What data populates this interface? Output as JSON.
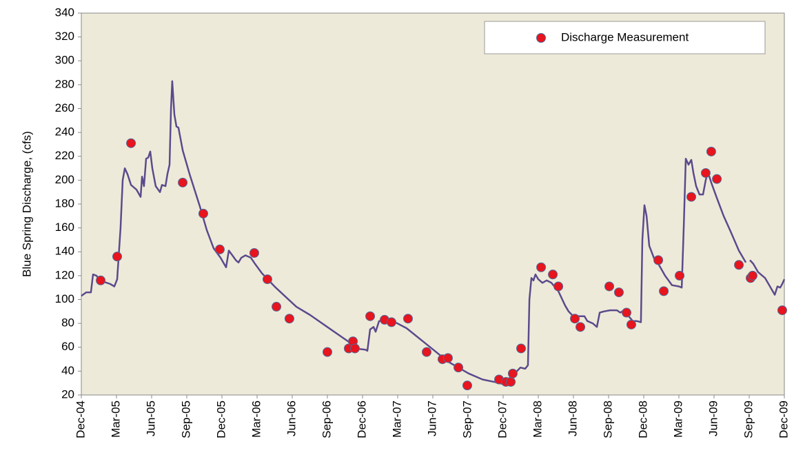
{
  "chart_data": {
    "type": "line",
    "ylabel": "Blue Spring Discharge, (cfs)",
    "ylim": [
      20,
      340
    ],
    "yticks": [
      20,
      40,
      60,
      80,
      100,
      120,
      140,
      160,
      180,
      200,
      220,
      240,
      260,
      280,
      300,
      320,
      340
    ],
    "xlim": [
      0,
      60
    ],
    "xticks": [
      {
        "value": 0,
        "label": "Dec-04"
      },
      {
        "value": 3,
        "label": "Mar-05"
      },
      {
        "value": 6,
        "label": "Jun-05"
      },
      {
        "value": 9,
        "label": "Sep-05"
      },
      {
        "value": 12,
        "label": "Dec-05"
      },
      {
        "value": 15,
        "label": "Mar-06"
      },
      {
        "value": 18,
        "label": "Jun-06"
      },
      {
        "value": 21,
        "label": "Sep-06"
      },
      {
        "value": 24,
        "label": "Dec-06"
      },
      {
        "value": 27,
        "label": "Mar-07"
      },
      {
        "value": 30,
        "label": "Jun-07"
      },
      {
        "value": 33,
        "label": "Sep-07"
      },
      {
        "value": 36,
        "label": "Dec-07"
      },
      {
        "value": 39,
        "label": "Mar-08"
      },
      {
        "value": 42,
        "label": "Jun-08"
      },
      {
        "value": 45,
        "label": "Sep-08"
      },
      {
        "value": 48,
        "label": "Dec-08"
      },
      {
        "value": 51,
        "label": "Mar-09"
      },
      {
        "value": 54,
        "label": "Jun-09"
      },
      {
        "value": 57,
        "label": "Sep-09"
      },
      {
        "value": 60,
        "label": "Dec-09"
      }
    ],
    "grid": false,
    "legend": "upper right",
    "series": [
      {
        "type": "line",
        "color": "#5a4a8c",
        "x": [
          0,
          0.41,
          0.82,
          1.0,
          1.29,
          1.59,
          2.47,
          2.82,
          3.06,
          3.35,
          3.53,
          3.71,
          3.94,
          4.24,
          4.71,
          5.06,
          5.18,
          5.35,
          5.53,
          5.71,
          5.88,
          6.06,
          6.35,
          6.71,
          6.88,
          7.18,
          7.35,
          7.53,
          7.65,
          7.76,
          7.94,
          8.12,
          8.29,
          8.65,
          9.24,
          10.12,
          10.71,
          11.29,
          11.88,
          12.35,
          12.59,
          12.82,
          13.18,
          13.41,
          13.65,
          14.0,
          14.47,
          14.82,
          15.41,
          16.59,
          18.35,
          19.53,
          21.29,
          22.76,
          23.35,
          24.24,
          24.41,
          24.65,
          24.94,
          25.12,
          25.41,
          26.0,
          26.59,
          27.76,
          29.53,
          31.29,
          33.06,
          34.24,
          35.71,
          36.0,
          36.41,
          36.88,
          37.18,
          37.47,
          37.88,
          38.12,
          38.24,
          38.41,
          38.59,
          38.76,
          39.0,
          39.35,
          39.71,
          40.12,
          40.71,
          41.29,
          41.59,
          41.88,
          42.47,
          42.94,
          43.18,
          43.65,
          44.0,
          44.24,
          44.59,
          45.12,
          45.71,
          46.0,
          46.29,
          46.71,
          47.06,
          47.41,
          47.76,
          47.88,
          48.06,
          48.24,
          48.47,
          48.94,
          49.24,
          49.82,
          50.41,
          51.0,
          51.24,
          51.41,
          51.59,
          51.82,
          52.06,
          52.24,
          52.47,
          52.76,
          53.06,
          53.29,
          53.47,
          53.76,
          54.24,
          54.82,
          55.41,
          56.12,
          56.71,
          56.9,
          57.06,
          57.35,
          57.76,
          58.35,
          58.71,
          59.18,
          59.41,
          59.65,
          59.82,
          60
        ],
        "values": [
          103,
          106,
          106,
          121,
          120,
          116,
          113,
          111,
          117,
          160,
          200,
          210,
          205,
          196,
          192,
          186,
          203,
          195,
          218,
          219,
          224,
          210,
          195,
          190,
          196,
          195,
          205,
          213,
          260,
          283,
          255,
          245,
          244,
          225,
          205,
          178,
          158,
          143,
          135,
          127,
          141,
          138,
          133,
          131,
          135,
          137,
          135,
          130,
          122,
          110,
          94,
          87,
          75,
          65,
          59,
          58,
          57,
          75,
          77,
          73,
          82,
          82,
          82,
          76,
          62,
          48,
          38,
          33,
          30,
          29,
          32,
          40,
          40,
          43,
          42,
          45,
          100,
          118,
          116,
          121,
          117,
          114,
          116,
          114,
          107,
          95,
          90,
          87,
          86,
          86,
          82,
          80,
          77,
          89,
          90,
          91,
          91,
          89,
          91,
          86,
          82,
          82,
          81,
          150,
          179,
          170,
          145,
          133,
          130,
          120,
          112,
          111,
          110,
          160,
          218,
          213,
          217,
          206,
          195,
          188,
          188,
          200,
          207,
          198,
          185,
          170,
          157,
          141,
          131,
          null,
          133,
          130,
          123,
          118,
          112,
          104,
          111,
          110,
          113,
          117
        ]
      },
      {
        "type": "scatter",
        "name": "Discharge Measurement",
        "color": "#e8141e",
        "x": [
          1.65,
          3.06,
          4.24,
          8.65,
          10.41,
          11.82,
          14.76,
          15.88,
          16.65,
          17.76,
          21.0,
          22.82,
          23.18,
          23.35,
          24.65,
          25.88,
          26.47,
          27.88,
          29.47,
          30.82,
          31.29,
          32.18,
          32.94,
          35.65,
          36.24,
          36.65,
          36.82,
          37.53,
          39.24,
          40.24,
          40.71,
          42.12,
          42.59,
          45.06,
          45.88,
          46.53,
          46.94,
          49.24,
          49.71,
          51.06,
          52.06,
          53.29,
          53.76,
          54.24,
          56.12,
          57.12,
          57.29,
          59.82
        ],
        "values": [
          116,
          136,
          231,
          198,
          172,
          142,
          139,
          117,
          94,
          84,
          56,
          59,
          65,
          59,
          86,
          83,
          81,
          84,
          56,
          50,
          51,
          43,
          28,
          33,
          31,
          31,
          38,
          59,
          127,
          121,
          111,
          84,
          77,
          111,
          106,
          89,
          79,
          133,
          107,
          120,
          186,
          206,
          224,
          201,
          129,
          118,
          120,
          91
        ]
      }
    ]
  }
}
